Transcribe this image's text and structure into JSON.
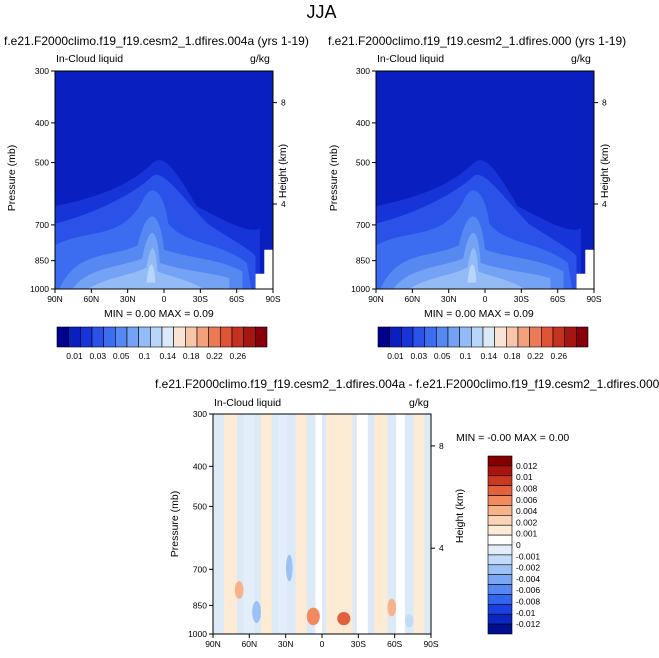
{
  "title": "JJA",
  "colors": {
    "seq_blues": [
      "#00008f",
      "#0a1fbf",
      "#1634d8",
      "#2a52e8",
      "#3c6df0",
      "#5688f2",
      "#74a2f4",
      "#93bcf7",
      "#b8d6fa",
      "#dceaf8"
    ],
    "seq_reds": [
      "#fbe3d4",
      "#f7c6a8",
      "#f3a07c",
      "#eb7a56",
      "#df5434",
      "#c63220",
      "#a51610",
      "#85000a"
    ],
    "diff": [
      "#000f8f",
      "#0a28c0",
      "#1a40e0",
      "#3066ec",
      "#5588f0",
      "#7aa6f3",
      "#9cc1f6",
      "#c2dbf9",
      "#e3eefa",
      "#ffffff",
      "#fdebd6",
      "#fbd3b5",
      "#f7b289",
      "#f18a5f",
      "#e2603b",
      "#c8391f",
      "#a9140c",
      "#840000"
    ],
    "panel_bg": "#0a1fbf"
  },
  "chart_data": [
    {
      "type": "heatmap",
      "name": "panel-left",
      "title": "f.e21.F2000climo.f19_f19.cesm2_1.dfires.004a (yrs 1-19)",
      "field_label": "In-Cloud liquid",
      "units": "g/kg",
      "xlabel": "",
      "ylabel": "Pressure (mb)",
      "y2label": "Height (km)",
      "xticks": [
        "90N",
        "60N",
        "30N",
        "0",
        "30S",
        "60S",
        "90S"
      ],
      "yticks": [
        "300",
        "400",
        "500",
        "700",
        "850",
        "1000"
      ],
      "y2ticks": [
        "8",
        "4"
      ],
      "stats": {
        "min_label": "MIN =",
        "min": "0.00",
        "max_label": "MAX =",
        "max": "0.09"
      },
      "colorbar_labels": [
        "0.01",
        "0.03",
        "0.05",
        "0.1",
        "0.14",
        "0.18",
        "0.22",
        "0.26"
      ]
    },
    {
      "type": "heatmap",
      "name": "panel-right",
      "title": "f.e21.F2000climo.f19_f19.cesm2_1.dfires.000 (yrs 1-19)",
      "field_label": "In-Cloud liquid",
      "units": "g/kg",
      "xlabel": "",
      "ylabel": "Pressure (mb)",
      "y2label": "Height (km)",
      "xticks": [
        "90N",
        "60N",
        "30N",
        "0",
        "30S",
        "60S",
        "90S"
      ],
      "yticks": [
        "300",
        "400",
        "500",
        "700",
        "850",
        "1000"
      ],
      "y2ticks": [
        "8",
        "4"
      ],
      "stats": {
        "min_label": "MIN =",
        "min": "0.00",
        "max_label": "MAX =",
        "max": "0.09"
      },
      "colorbar_labels": [
        "0.01",
        "0.03",
        "0.05",
        "0.1",
        "0.14",
        "0.18",
        "0.22",
        "0.26"
      ]
    },
    {
      "type": "heatmap",
      "name": "panel-diff",
      "title": "f.e21.F2000climo.f19_f19.cesm2_1.dfires.004a - f.e21.F2000climo.f19_f19.cesm2_1.dfires.000",
      "field_label": "In-Cloud liquid",
      "units": "g/kg",
      "xlabel": "",
      "ylabel": "Pressure (mb)",
      "y2label": "Height (km)",
      "xticks": [
        "90N",
        "60N",
        "30N",
        "0",
        "30S",
        "60S",
        "90S"
      ],
      "yticks": [
        "300",
        "400",
        "500",
        "700",
        "850",
        "1000"
      ],
      "y2ticks": [
        "8",
        "4"
      ],
      "stats": {
        "min_label": "MIN =",
        "min": "-0.00",
        "max_label": "MAX =",
        "max": "0.00"
      },
      "colorbar_labels": [
        "0.012",
        "0.01",
        "0.008",
        "0.006",
        "0.004",
        "0.002",
        "0.001",
        "0",
        "-0.001",
        "-0.002",
        "-0.004",
        "-0.006",
        "-0.008",
        "-0.01",
        "-0.012"
      ]
    }
  ]
}
